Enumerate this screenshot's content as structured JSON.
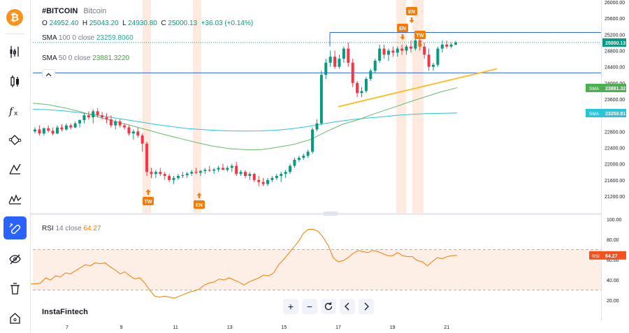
{
  "app": {
    "brand": "InstaFintech"
  },
  "legend": {
    "symbol": "#BITCOIN",
    "description": "Bitcoin",
    "o_label": "O",
    "o_value": "24952.40",
    "h_label": "H",
    "h_value": "25043.20",
    "l_label": "L",
    "l_value": "24930.80",
    "c_label": "C",
    "c_value": "25000.13",
    "change": "+36.03 (+0.14%)",
    "sma100": {
      "name": "SMA",
      "params": "100 0 close",
      "value": "23259.8060"
    },
    "sma50": {
      "name": "SMA",
      "params": "50 0 close",
      "value": "23881.3220"
    },
    "rsi": {
      "name": "RSI",
      "params": "14 close",
      "value": "64.27"
    }
  },
  "colors": {
    "up": "#089981",
    "down": "#f23645",
    "sma100": "#26c6da",
    "sma50": "#66bb6a",
    "rsi": "#f57c00",
    "trendline": "#fbc02d",
    "highlight": "#fde3d4",
    "signal": "#f57c00",
    "hline": "#2962ff",
    "resistance": "#2962ff"
  },
  "chart_data": [
    {
      "type": "candlestick",
      "title": "#BITCOIN",
      "x_ticks": [
        "7",
        "9",
        "11",
        "13",
        "15",
        "17",
        "19",
        "21"
      ],
      "ylim": [
        20800,
        26200
      ],
      "y_ticks": [
        "26000.00",
        "25600.00",
        "25200.00",
        "24800.00",
        "24400.00",
        "24000.00",
        "23600.00",
        "23200.00",
        "22800.00",
        "22400.00",
        "22000.00",
        "21600.00",
        "21200.00"
      ],
      "candles": [
        [
          22800,
          22900,
          22750,
          22850
        ],
        [
          22850,
          22950,
          22700,
          22750
        ],
        [
          22750,
          22900,
          22700,
          22880
        ],
        [
          22880,
          22950,
          22780,
          22820
        ],
        [
          22820,
          22900,
          22700,
          22750
        ],
        [
          22750,
          22950,
          22730,
          22900
        ],
        [
          22900,
          22980,
          22800,
          22850
        ],
        [
          22850,
          23000,
          22820,
          22950
        ],
        [
          22950,
          23000,
          22850,
          22900
        ],
        [
          22900,
          23050,
          22880,
          23000
        ],
        [
          23000,
          23100,
          22900,
          23080
        ],
        [
          23080,
          23250,
          23000,
          23200
        ],
        [
          23200,
          23300,
          23100,
          23150
        ],
        [
          23150,
          23350,
          23000,
          23300
        ],
        [
          23300,
          23380,
          23150,
          23200
        ],
        [
          23200,
          23280,
          23100,
          23150
        ],
        [
          23150,
          23250,
          23000,
          23100
        ],
        [
          23100,
          23200,
          22900,
          22950
        ],
        [
          22950,
          23100,
          22850,
          23050
        ],
        [
          23050,
          23100,
          22900,
          22950
        ],
        [
          22950,
          23000,
          22850,
          22900
        ],
        [
          22900,
          22950,
          22700,
          22750
        ],
        [
          22750,
          22850,
          22600,
          22800
        ],
        [
          22800,
          22900,
          22650,
          22700
        ],
        [
          22700,
          22750,
          22300,
          22500
        ],
        [
          22500,
          22550,
          21700,
          21800
        ],
        [
          21800,
          21900,
          21650,
          21750
        ],
        [
          21750,
          21850,
          21650,
          21800
        ],
        [
          21800,
          21900,
          21700,
          21750
        ],
        [
          21750,
          21800,
          21600,
          21700
        ],
        [
          21700,
          21750,
          21550,
          21600
        ],
        [
          21600,
          21700,
          21500,
          21650
        ],
        [
          21650,
          21750,
          21600,
          21700
        ],
        [
          21700,
          21800,
          21650,
          21720
        ],
        [
          21720,
          21800,
          21650,
          21760
        ],
        [
          21760,
          21850,
          21700,
          21800
        ],
        [
          21800,
          21900,
          21750,
          21780
        ],
        [
          21780,
          21850,
          21700,
          21820
        ],
        [
          21820,
          21900,
          21750,
          21850
        ],
        [
          21850,
          21950,
          21800,
          21830
        ],
        [
          21830,
          21900,
          21750,
          21860
        ],
        [
          21860,
          21950,
          21800,
          21900
        ],
        [
          21900,
          22000,
          21850,
          21850
        ],
        [
          21850,
          21950,
          21800,
          21900
        ],
        [
          21900,
          22000,
          21800,
          21950
        ],
        [
          21950,
          22050,
          21700,
          21750
        ],
        [
          21750,
          21850,
          21700,
          21800
        ],
        [
          21800,
          21850,
          21650,
          21700
        ],
        [
          21700,
          21800,
          21600,
          21750
        ],
        [
          21750,
          21780,
          21550,
          21600
        ],
        [
          21600,
          21700,
          21450,
          21550
        ],
        [
          21550,
          21650,
          21450,
          21500
        ],
        [
          21500,
          21650,
          21450,
          21600
        ],
        [
          21600,
          21700,
          21550,
          21650
        ],
        [
          21650,
          21750,
          21600,
          21700
        ],
        [
          21700,
          21800,
          21550,
          21750
        ],
        [
          21750,
          21850,
          21650,
          21800
        ],
        [
          21800,
          22000,
          21750,
          21950
        ],
        [
          21950,
          22150,
          21900,
          22100
        ],
        [
          22100,
          22200,
          22050,
          22150
        ],
        [
          22150,
          22250,
          22100,
          22200
        ],
        [
          22200,
          22350,
          22150,
          22300
        ],
        [
          22300,
          22900,
          22250,
          22850
        ],
        [
          22850,
          23100,
          22800,
          23000
        ],
        [
          23000,
          24300,
          22950,
          24200
        ],
        [
          24200,
          24600,
          24100,
          24500
        ],
        [
          24500,
          24800,
          24400,
          24650
        ],
        [
          24650,
          24800,
          24350,
          24400
        ],
        [
          24400,
          24700,
          24350,
          24600
        ],
        [
          24600,
          24900,
          24500,
          24850
        ],
        [
          24850,
          25000,
          24400,
          24500
        ],
        [
          24500,
          24600,
          23900,
          24000
        ],
        [
          24000,
          24050,
          23650,
          23750
        ],
        [
          23750,
          23900,
          23650,
          23800
        ],
        [
          23800,
          24150,
          23750,
          24100
        ],
        [
          24100,
          24350,
          24050,
          24300
        ],
        [
          24300,
          24600,
          24250,
          24550
        ],
        [
          24550,
          24950,
          24500,
          24850
        ],
        [
          24850,
          24950,
          24600,
          24700
        ],
        [
          24700,
          24850,
          24550,
          24800
        ],
        [
          24800,
          24900,
          24650,
          24750
        ],
        [
          24750,
          24900,
          24650,
          24850
        ],
        [
          24850,
          24950,
          24700,
          24800
        ],
        [
          24800,
          24950,
          24700,
          24900
        ],
        [
          24900,
          25050,
          24750,
          24850
        ],
        [
          24850,
          25100,
          24800,
          25050
        ],
        [
          25050,
          25150,
          24800,
          24900
        ],
        [
          24900,
          25000,
          24600,
          24700
        ],
        [
          24700,
          24850,
          24300,
          24400
        ],
        [
          24400,
          24500,
          24300,
          24450
        ],
        [
          24450,
          24900,
          24400,
          24850
        ],
        [
          24850,
          25050,
          24750,
          24950
        ],
        [
          24950,
          25050,
          24850,
          24900
        ],
        [
          24900,
          25000,
          24850,
          24950
        ],
        [
          24950,
          25043,
          24930,
          25000
        ]
      ],
      "series": [
        {
          "name": "SMA 100",
          "values": [
            23350,
            23340,
            23310,
            23270,
            23220,
            23160,
            23100,
            23040,
            22980,
            22930,
            22880,
            22850,
            22830,
            22815,
            22810,
            22815,
            22830,
            22865,
            22915,
            22980,
            23040,
            23090,
            23130,
            23160,
            23200,
            23225,
            23240,
            23250,
            23259.8
          ]
        },
        {
          "name": "SMA 50",
          "values": [
            23500,
            23460,
            23380,
            23280,
            23160,
            23050,
            22950,
            22840,
            22730,
            22630,
            22530,
            22440,
            22380,
            22350,
            22350,
            22410,
            22480,
            22600,
            22800,
            22980,
            23100,
            23250,
            23380,
            23520,
            23650,
            23780,
            23881.3
          ]
        }
      ],
      "current_price": "25000.13",
      "sma100_tag": "23259.81",
      "sma50_tag": "23881.32",
      "horizontal_lines": [
        24250
      ],
      "resistance": 25250,
      "trendline": [
        [
          17,
          23500
        ],
        [
          22,
          24400
        ]
      ],
      "signals": [
        {
          "label": "TW",
          "dir": "up",
          "x": 9.9
        },
        {
          "label": "EN",
          "dir": "up",
          "x": 11.8
        },
        {
          "label": "EN",
          "dir": "down",
          "x": 19.3
        },
        {
          "label": "EN",
          "dir": "down",
          "x": 19.7
        },
        {
          "label": "TW",
          "dir": "down",
          "x": 20.0
        }
      ]
    },
    {
      "type": "line",
      "title": "RSI",
      "ylim": [
        10,
        105
      ],
      "y_ticks": [
        "100.00",
        "80.00",
        "60.00",
        "40.00",
        "20.00"
      ],
      "levels": [
        70,
        30
      ],
      "values": [
        36,
        36,
        37,
        42,
        40,
        44,
        43,
        47,
        46,
        49,
        52,
        55,
        54,
        57,
        56,
        57,
        53,
        50,
        46,
        48,
        44,
        41,
        42,
        37,
        30,
        24,
        23,
        24,
        23,
        22,
        24,
        26,
        28,
        29,
        31,
        35,
        37,
        38,
        41,
        40,
        42,
        40,
        38,
        35,
        38,
        40,
        42,
        45,
        44,
        47,
        55,
        60,
        66,
        72,
        78,
        86,
        90,
        90,
        88,
        82,
        74,
        62,
        58,
        59,
        62,
        66,
        69,
        68,
        67,
        69,
        68,
        66,
        64,
        64,
        67,
        64,
        63,
        63,
        59,
        58,
        54,
        58,
        62,
        61,
        63,
        64,
        64.27
      ],
      "value_tag": "64.27"
    }
  ]
}
